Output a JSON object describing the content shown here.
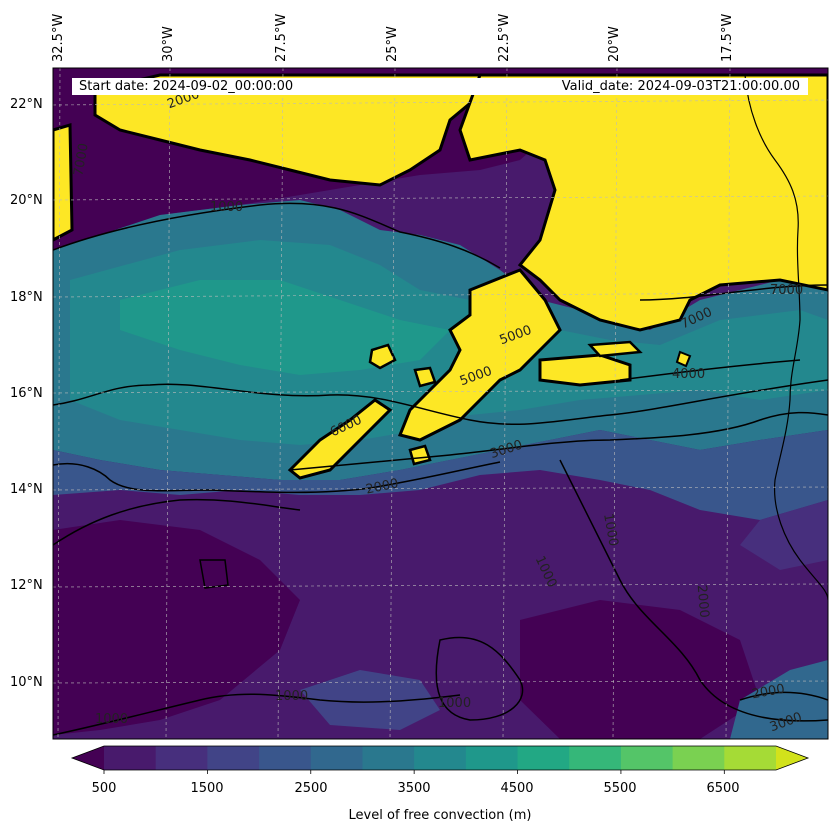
{
  "map": {
    "start_date": "Start date: 2024-09-02_00:00:00",
    "valid_date": "Valid_date: 2024-09-03T21:00:00.00",
    "lon_labels": [
      "32.5°W",
      "30°W",
      "27.5°W",
      "25°W",
      "22.5°W",
      "20°W",
      "17.5°W"
    ],
    "lat_labels": [
      "22°N",
      "20°N",
      "18°N",
      "16°N",
      "14°N",
      "12°N",
      "10°N"
    ],
    "contour_labels": [
      "1000",
      "1000",
      "1000",
      "1000",
      "1000",
      "1000",
      "2000",
      "2000",
      "2000",
      "2000",
      "3000",
      "3000",
      "4000",
      "5000",
      "5000",
      "6000",
      "7000",
      "7000",
      "7000"
    ],
    "colors": [
      "#440154",
      "#481a6c",
      "#472f7d",
      "#414487",
      "#39568c",
      "#31688e",
      "#2a788e",
      "#23888e",
      "#1f988b",
      "#22a884",
      "#35b779",
      "#54c568",
      "#7ad151",
      "#a5db36",
      "#d2e21b",
      "#fde725"
    ]
  },
  "colorbar": {
    "label": "Level of free convection (m)",
    "ticks": [
      "500",
      "1500",
      "2500",
      "3500",
      "4500",
      "5500",
      "6500"
    ],
    "levels": [
      500,
      1000,
      1500,
      2000,
      2500,
      3000,
      3500,
      4000,
      4500,
      5000,
      5500,
      6000,
      6500,
      7000
    ],
    "colors": [
      "#440154",
      "#481a6c",
      "#472f7d",
      "#414487",
      "#39568c",
      "#31688e",
      "#2a788e",
      "#23888e",
      "#1f988b",
      "#22a884",
      "#35b779",
      "#54c568",
      "#7ad151",
      "#a5db36",
      "#d2e21b",
      "#fde725"
    ]
  }
}
